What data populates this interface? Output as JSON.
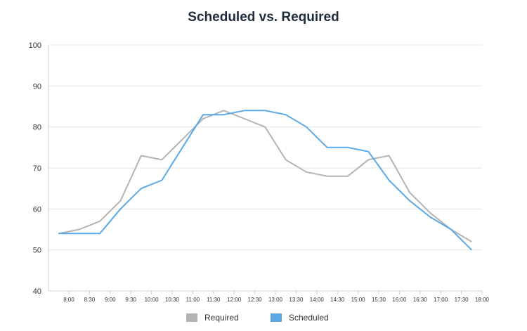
{
  "chart_data": {
    "type": "line",
    "title": "Scheduled vs. Required",
    "xlabel": "",
    "ylabel": "",
    "ylim": [
      40,
      100
    ],
    "yticks": [
      40,
      50,
      60,
      70,
      80,
      90,
      100
    ],
    "grid": true,
    "legend_position": "bottom",
    "x": [
      "7:45",
      "8:15",
      "8:45",
      "9:15",
      "9:45",
      "10:15",
      "10:45",
      "11:15",
      "11:45",
      "12:15",
      "12:45",
      "13:15",
      "13:45",
      "14:15",
      "14:45",
      "15:15",
      "15:45",
      "16:15",
      "16:45",
      "17:15",
      "17:45"
    ],
    "xtick_labels": [
      "8:00",
      "8:30",
      "9:00",
      "9:30",
      "10:00",
      "10:30",
      "11:00",
      "11:30",
      "12:00",
      "12:30",
      "13:00",
      "13:30",
      "14:00",
      "14:30",
      "15:00",
      "15:30",
      "16:00",
      "16:30",
      "17:00",
      "17:30",
      "18:00"
    ],
    "series": [
      {
        "name": "Required",
        "color": "#b3b3b3",
        "values": [
          54,
          55,
          57,
          62,
          73,
          72,
          77,
          82,
          84,
          82,
          80,
          72,
          69,
          68,
          68,
          72,
          73,
          64,
          59,
          55,
          52
        ]
      },
      {
        "name": "Scheduled",
        "color": "#5aa9e6",
        "values": [
          54,
          54,
          54,
          60,
          65,
          67,
          75,
          83,
          83,
          84,
          84,
          83,
          80,
          75,
          75,
          74,
          67,
          62,
          58,
          55,
          50
        ]
      }
    ]
  }
}
